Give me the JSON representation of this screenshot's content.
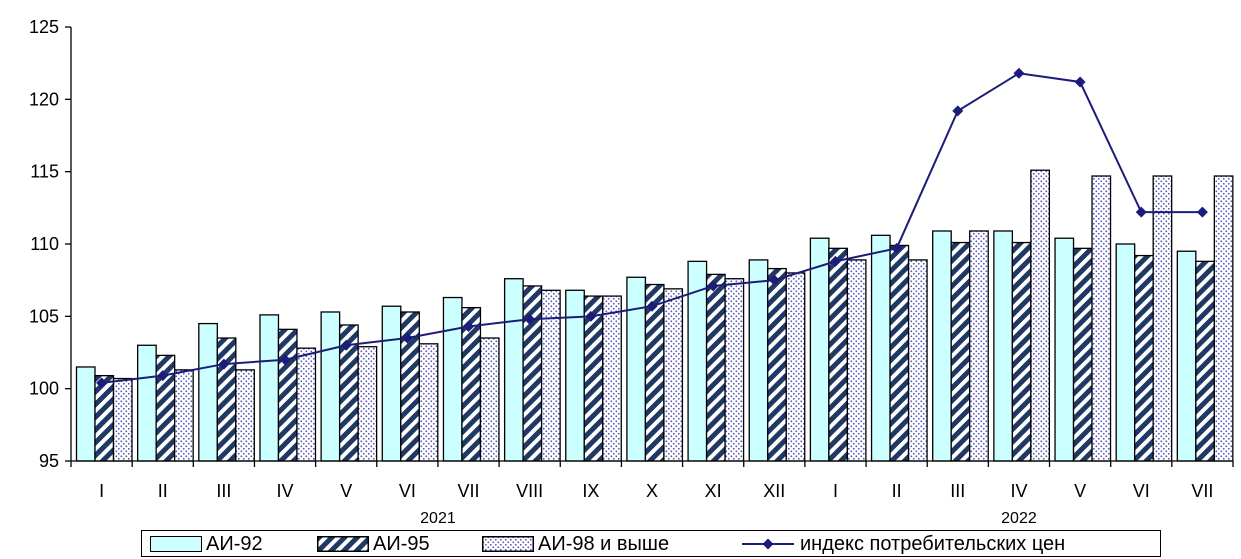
{
  "chart_data": {
    "type": "bar",
    "y_axis": {
      "min": 95,
      "max": 125,
      "step": 5,
      "ticks": [
        "95",
        "100",
        "105",
        "110",
        "115",
        "120",
        "125"
      ]
    },
    "categories": [
      "I",
      "II",
      "III",
      "IV",
      "V",
      "VI",
      "VII",
      "VIII",
      "IX",
      "X",
      "XI",
      "XII",
      "I",
      "II",
      "III",
      "IV",
      "V",
      "VI",
      "VII"
    ],
    "year_labels": [
      {
        "text": "2021",
        "start_index": 0,
        "end_index": 11
      },
      {
        "text": "2022",
        "start_index": 12,
        "end_index": 18
      }
    ],
    "series": [
      {
        "name": "АИ-92",
        "kind": "bar",
        "color": "#ccffff",
        "values": [
          101.5,
          103.0,
          104.5,
          105.1,
          105.3,
          105.7,
          106.3,
          107.6,
          106.8,
          107.7,
          108.8,
          108.9,
          110.4,
          110.6,
          110.9,
          110.9,
          110.4,
          110.0,
          109.5
        ]
      },
      {
        "name": "АИ-95",
        "kind": "bar",
        "color": "#1f3864",
        "values": [
          100.9,
          102.3,
          103.5,
          104.1,
          104.4,
          105.3,
          105.6,
          107.1,
          106.4,
          107.2,
          107.9,
          108.3,
          109.7,
          109.9,
          110.1,
          110.1,
          109.7,
          109.2,
          108.8
        ]
      },
      {
        "name": "АИ-98 и выше",
        "kind": "bar",
        "color": "#9999dd",
        "values": [
          100.7,
          101.3,
          101.3,
          102.8,
          102.9,
          103.1,
          103.5,
          106.8,
          106.4,
          106.9,
          107.6,
          108.0,
          108.9,
          108.9,
          110.9,
          115.1,
          114.7,
          114.7,
          114.7
        ]
      },
      {
        "name": "индекс потребительских цен",
        "kind": "line",
        "color": "#1c1c7a",
        "values": [
          100.4,
          100.9,
          101.7,
          102.0,
          103.0,
          103.5,
          104.3,
          104.8,
          105.0,
          105.7,
          107.1,
          107.5,
          108.8,
          109.7,
          119.2,
          121.8,
          121.2,
          112.2,
          112.2
        ]
      }
    ],
    "grid": false,
    "legend_position": "bottom"
  }
}
